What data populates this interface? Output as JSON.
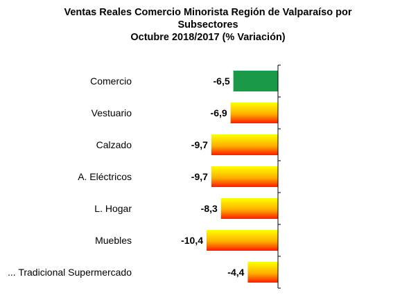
{
  "chart_data": {
    "type": "bar",
    "orientation": "horizontal",
    "title": "Ventas Reales Comercio Minorista  Región de Valparaíso por Subsectores",
    "subtitle": "Octubre  2018/2017 (% Variación)",
    "categories": [
      "Comercio",
      "Vestuario",
      "Calzado",
      "A. Eléctricos",
      "L. Hogar",
      "Muebles",
      "... Tradicional Supermercado"
    ],
    "value_labels": [
      "-6,5",
      "-6,9",
      "-9,7",
      "-9,7",
      "-8,3",
      "-10,4",
      "-4,4"
    ],
    "values": [
      -6.5,
      -6.9,
      -9.7,
      -9.7,
      -8.3,
      -10.4,
      -4.4
    ],
    "xlabel": "",
    "ylabel": "",
    "xlim": [
      -10.4,
      0
    ],
    "grid": false,
    "legend": "none",
    "colors": {
      "highlight_bar": "#1a9a48",
      "gradient_top": "#ffff00",
      "gradient_mid": "#ffb000",
      "gradient_bottom": "#ff1a00",
      "axis": "#000000"
    }
  },
  "title_lines": [
    "Ventas Reales Comercio Minorista  Región de Valparaíso por",
    "Subsectores",
    "Octubre  2018/2017 (% Variación)"
  ]
}
